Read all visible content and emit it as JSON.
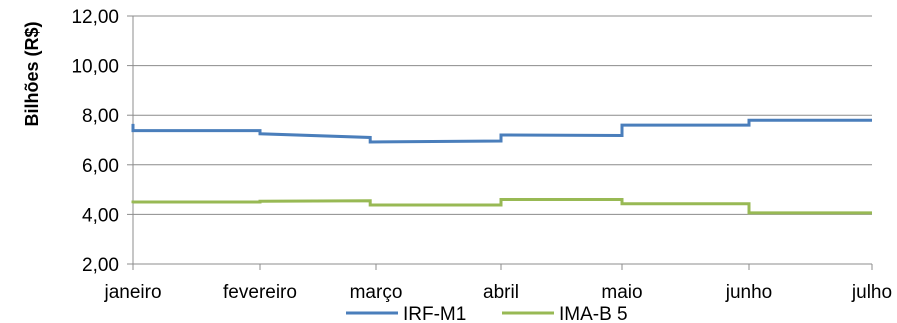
{
  "chart_data": {
    "type": "line",
    "ylabel": "Bilhões (R$)",
    "xlabel": "",
    "title": "",
    "ylim": [
      2,
      12
    ],
    "yticks": [
      2,
      4,
      6,
      8,
      10,
      12
    ],
    "ytick_labels": [
      "2,00",
      "4,00",
      "6,00",
      "8,00",
      "10,00",
      "12,00"
    ],
    "categories": [
      "janeiro",
      "fevereiro",
      "março",
      "abril",
      "maio",
      "junho",
      "julho"
    ],
    "grid": "horizontal",
    "legend_position": "bottom",
    "series": [
      {
        "name": "IRF-M1",
        "color": "#4a7ebb",
        "points": [
          {
            "x": 0.0,
            "y": 7.65
          },
          {
            "x": 0.0,
            "y": 7.38
          },
          {
            "x": 1.0,
            "y": 7.38
          },
          {
            "x": 1.0,
            "y": 7.25
          },
          {
            "x": 1.95,
            "y": 7.1
          },
          {
            "x": 1.95,
            "y": 6.92
          },
          {
            "x": 3.0,
            "y": 6.96
          },
          {
            "x": 3.0,
            "y": 7.2
          },
          {
            "x": 4.0,
            "y": 7.18
          },
          {
            "x": 4.0,
            "y": 7.6
          },
          {
            "x": 5.0,
            "y": 7.6
          },
          {
            "x": 5.0,
            "y": 7.8
          },
          {
            "x": 6.0,
            "y": 7.8
          }
        ]
      },
      {
        "name": "IMA-B 5",
        "color": "#98b954",
        "points": [
          {
            "x": 0.0,
            "y": 4.45
          },
          {
            "x": 0.0,
            "y": 4.5
          },
          {
            "x": 1.0,
            "y": 4.5
          },
          {
            "x": 1.0,
            "y": 4.53
          },
          {
            "x": 1.95,
            "y": 4.55
          },
          {
            "x": 1.95,
            "y": 4.38
          },
          {
            "x": 3.0,
            "y": 4.38
          },
          {
            "x": 3.0,
            "y": 4.6
          },
          {
            "x": 4.0,
            "y": 4.6
          },
          {
            "x": 4.0,
            "y": 4.43
          },
          {
            "x": 5.0,
            "y": 4.43
          },
          {
            "x": 5.0,
            "y": 4.06
          },
          {
            "x": 6.0,
            "y": 4.06
          }
        ]
      }
    ]
  }
}
